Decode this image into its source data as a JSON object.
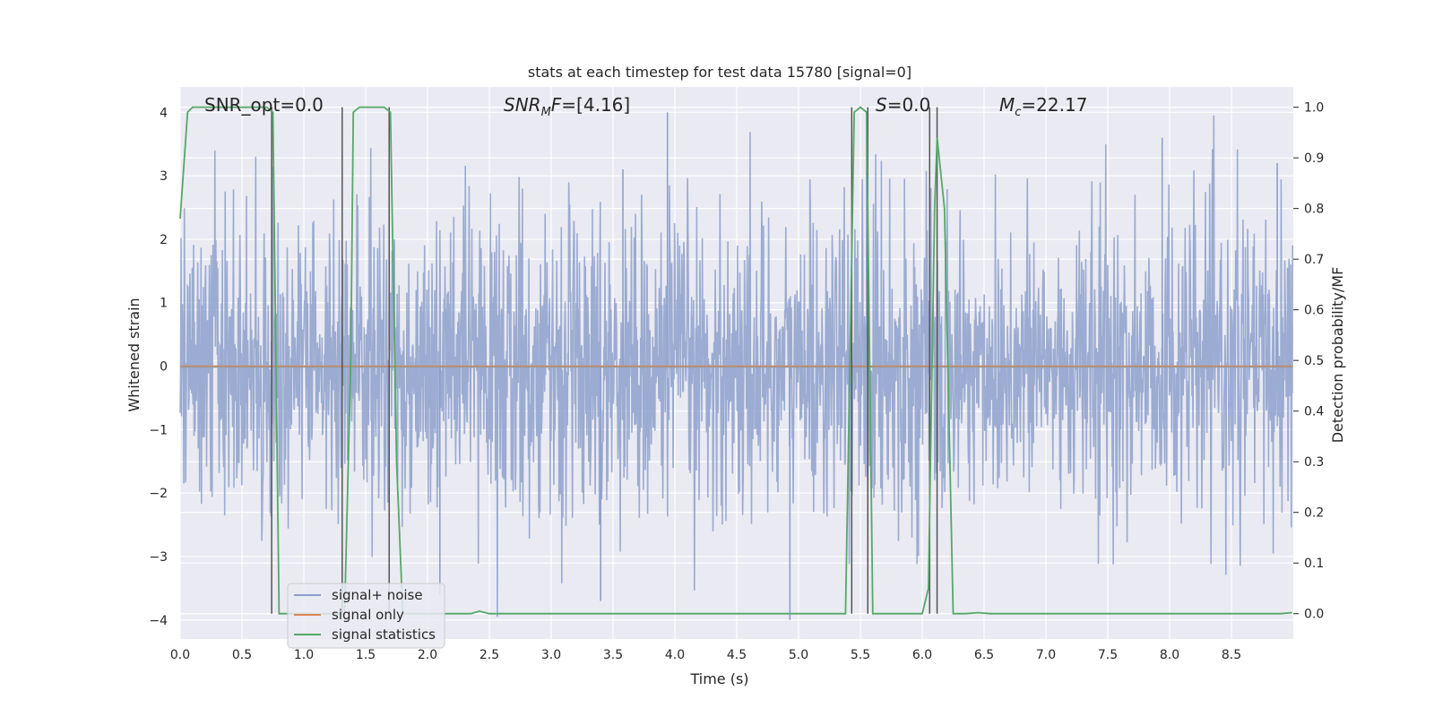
{
  "chart_data": {
    "type": "line",
    "title": "stats at each timestep for test data 15780 [signal=0]",
    "xlabel": "Time (s)",
    "ylabel_left": "Whitened strain",
    "ylabel_right": "Detection probability/MF",
    "xlim": [
      0.0,
      9.0
    ],
    "ylim_left": [
      -4.3,
      4.4
    ],
    "ylim_right": [
      -0.05,
      1.04
    ],
    "x_ticks": [
      "0.0",
      "0.5",
      "1.0",
      "1.5",
      "2.0",
      "2.5",
      "3.0",
      "3.5",
      "4.0",
      "4.5",
      "5.0",
      "5.5",
      "6.0",
      "6.5",
      "7.0",
      "7.5",
      "8.0",
      "8.5"
    ],
    "y_left_ticks": [
      "4",
      "3",
      "2",
      "1",
      "0",
      "−1",
      "−2",
      "−3",
      "−4"
    ],
    "y_right_ticks": [
      "1.0",
      "0.9",
      "0.8",
      "0.7",
      "0.6",
      "0.5",
      "0.4",
      "0.3",
      "0.2",
      "0.1",
      "0.0"
    ],
    "annotations": {
      "snr_opt": "SNR_opt=0.0",
      "snr_mf_main": "SNR",
      "snr_mf_sub": "M",
      "snr_mf_it": "F",
      "snr_mf_val": "=[4.16]",
      "s_it": "S",
      "s_val": "=0.0",
      "mc_main": "M",
      "mc_sub": "c",
      "mc_val": "=22.17"
    },
    "legend": {
      "placement": "lower-left",
      "entries": [
        "signal+ noise",
        "signal only",
        "signal statistics"
      ]
    },
    "colors": {
      "background": "#eaeaf2",
      "grid": "#ffffff",
      "noise": "#8da0cb",
      "signal_only": "#dd8452",
      "statistics": "#55a868",
      "event_lines": "#555555"
    },
    "series": [
      {
        "name": "signal+ noise",
        "axis": "left",
        "x_range": [
          0.0,
          8.995
        ],
        "typical_amplitude": 1.6,
        "peak_amplitude": 4.0,
        "representation": "whitened noise, dense band"
      },
      {
        "name": "signal only",
        "axis": "left",
        "x": [
          0.0,
          8.995
        ],
        "y": [
          0.0,
          0.0
        ]
      },
      {
        "name": "signal statistics",
        "axis": "right",
        "x": [
          0.0,
          0.06,
          0.1,
          0.7,
          0.75,
          0.8,
          0.83,
          1.33,
          1.38,
          1.4,
          1.45,
          1.65,
          1.7,
          1.75,
          1.8,
          2.35,
          2.42,
          2.5,
          5.38,
          5.45,
          5.5,
          5.55,
          5.6,
          5.65,
          6.0,
          6.05,
          6.1,
          6.12,
          6.18,
          6.25,
          6.3,
          6.35,
          6.45,
          6.55,
          8.9,
          8.99
        ],
        "y": [
          0.78,
          0.99,
          1.0,
          1.0,
          0.99,
          0.0,
          0.0,
          0.0,
          0.5,
          0.99,
          1.0,
          1.0,
          0.99,
          0.3,
          0.0,
          0.0,
          0.005,
          0.0,
          0.0,
          0.99,
          1.0,
          0.99,
          0.0,
          0.0,
          0.0,
          0.05,
          0.8,
          0.94,
          0.8,
          0.0,
          0.0,
          0.0,
          0.002,
          0.0,
          0.0,
          0.002
        ]
      }
    ],
    "event_lines_x": [
      0.74,
      1.31,
      1.69,
      5.43,
      5.56,
      6.06,
      6.12
    ],
    "event_lines_y_range": [
      0.0,
      1.0
    ]
  }
}
